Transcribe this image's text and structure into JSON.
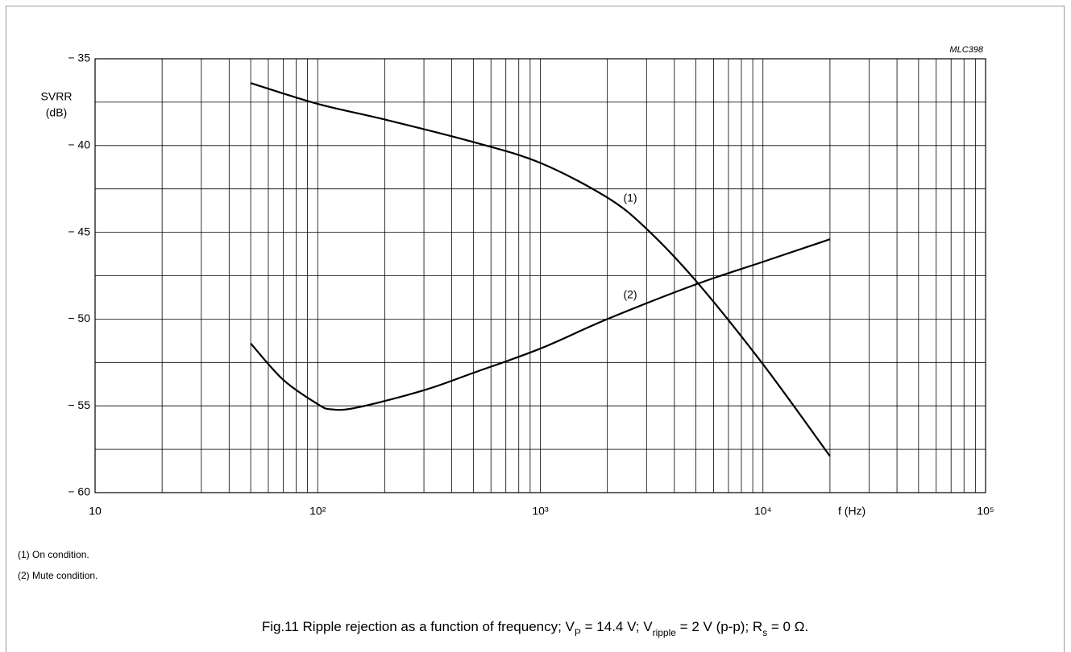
{
  "chart_data": {
    "type": "line",
    "id_label": "MLC398",
    "ylabel": [
      "SVRR",
      "(dB)"
    ],
    "xlabel": "f  (Hz)",
    "xscale": "log",
    "xlim": [
      10,
      100000
    ],
    "ylim": [
      -60,
      -35
    ],
    "xticks": [
      10,
      {
        "value": 100,
        "label": "10²"
      },
      {
        "value": 1000,
        "label": "10³"
      },
      {
        "value": 10000,
        "label": "10⁴"
      },
      {
        "value": 100000,
        "label": "10⁵"
      }
    ],
    "yticks": [
      {
        "value": -35,
        "label": "− 35"
      },
      {
        "value": -40,
        "label": "− 40"
      },
      {
        "value": -45,
        "label": "− 45"
      },
      {
        "value": -50,
        "label": "− 50"
      },
      {
        "value": -55,
        "label": "− 55"
      },
      {
        "value": -60,
        "label": "− 60"
      }
    ],
    "x_minor_grid": [
      20,
      30,
      40,
      50,
      60,
      70,
      80,
      90,
      200,
      300,
      400,
      500,
      600,
      700,
      800,
      900,
      2000,
      3000,
      4000,
      5000,
      6000,
      7000,
      8000,
      9000,
      20000,
      30000,
      40000,
      50000,
      60000,
      70000,
      80000,
      90000
    ],
    "y_minor_grid": [
      -37.5,
      -42.5,
      -47.5,
      -52.5,
      -57.5
    ],
    "grid": true,
    "series": [
      {
        "name": "(1)",
        "color": "#000000",
        "x": [
          50,
          100,
          200,
          500,
          1000,
          2000,
          3000,
          5000,
          10000,
          20000
        ],
        "values": [
          -36.4,
          -37.6,
          -38.5,
          -39.8,
          -41.0,
          -43.0,
          -44.8,
          -47.8,
          -52.6,
          -57.9
        ]
      },
      {
        "name": "(2)",
        "color": "#000000",
        "x": [
          50,
          70,
          100,
          115,
          150,
          300,
          500,
          1000,
          2000,
          5000,
          10000,
          20000
        ],
        "values": [
          -51.4,
          -53.5,
          -54.9,
          -55.2,
          -55.1,
          -54.1,
          -53.1,
          -51.7,
          -50.0,
          -48.0,
          -46.7,
          -45.4
        ]
      }
    ],
    "notes": [
      "(1)  On condition.",
      "(2)  Mute condition."
    ],
    "caption_parts": [
      "Fig.11  Ripple rejection as a function of frequency; V",
      "P",
      " = 14.4 V; V",
      "ripple",
      " = 2 V (p-p); R",
      "s",
      " = 0 Ω."
    ]
  }
}
